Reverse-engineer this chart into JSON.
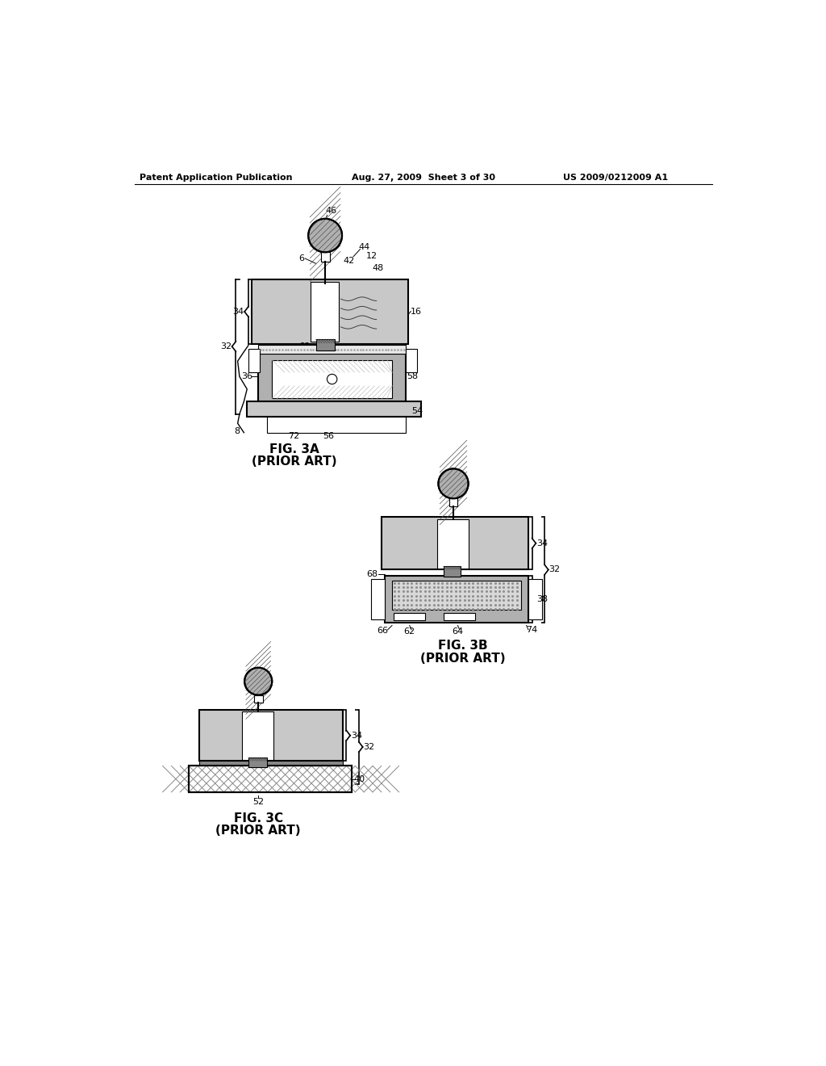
{
  "header_left": "Patent Application Publication",
  "header_center": "Aug. 27, 2009  Sheet 3 of 30",
  "header_right": "US 2009/0212009 A1",
  "fig3a_label": "FIG. 3A",
  "fig3a_sublabel": "(PRIOR ART)",
  "fig3b_label": "FIG. 3B",
  "fig3b_sublabel": "(PRIOR ART)",
  "fig3c_label": "FIG. 3C",
  "fig3c_sublabel": "(PRIOR ART)",
  "bg_color": "#ffffff",
  "lc": "#000000",
  "gray_light": "#c8c8c8",
  "gray_medium": "#b0b0b0",
  "gray_dark": "#888888",
  "gray_vdark": "#606060",
  "dot_fill": "#d8d8d8"
}
